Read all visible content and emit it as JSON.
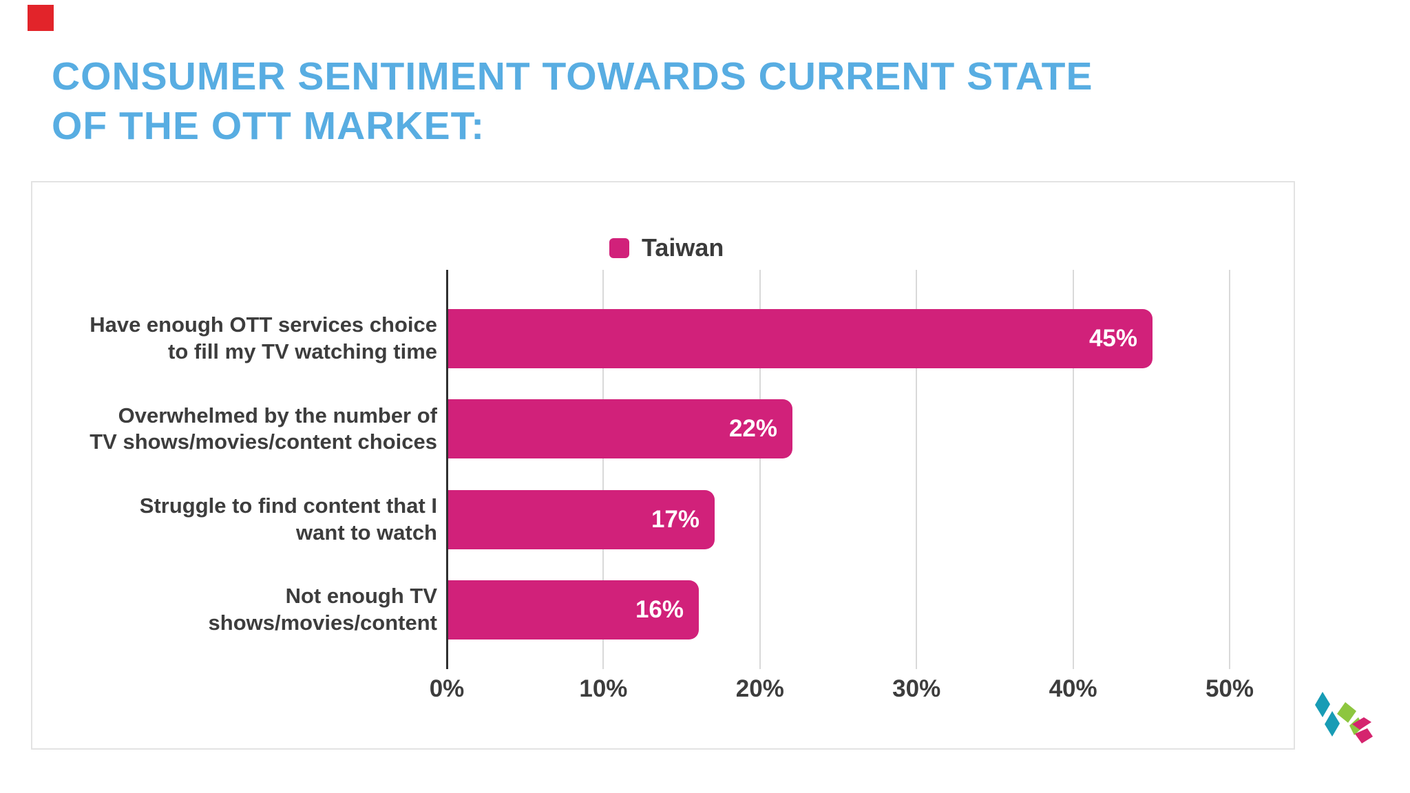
{
  "page": {
    "title": "CONSUMER SENTIMENT TOWARDS CURRENT STATE\nOF THE OTT MARKET:",
    "title_color": "#58ade2",
    "corner_square_color": "#e2242a",
    "card_border_color": "#e3e3e3"
  },
  "legend": {
    "label": "Taiwan",
    "swatch_color": "#d1217a",
    "position": "top-center"
  },
  "chart_data": {
    "type": "bar",
    "orientation": "horizontal",
    "title": "",
    "series_name": "Taiwan",
    "categories": [
      "Have enough OTT services choice\nto fill my TV watching time",
      "Overwhelmed by the number of\nTV shows/movies/content choices",
      "Struggle to find content that I\nwant to watch",
      "Not enough TV\nshows/movies/content"
    ],
    "values": [
      45,
      22,
      17,
      16
    ],
    "value_labels": [
      "45%",
      "22%",
      "17%",
      "16%"
    ],
    "x_ticks": [
      "0%",
      "10%",
      "20%",
      "30%",
      "40%",
      "50%"
    ],
    "x_tick_values": [
      0,
      10,
      20,
      30,
      40,
      50
    ],
    "xlim": [
      0,
      50
    ],
    "grid": true,
    "bar_color": "#d1217a",
    "value_label_color": "#ffffff",
    "category_label_color": "#3d3d3d",
    "axis_line_color": "#2f2f2f",
    "gridline_color": "#d9d9d9"
  },
  "logo": {
    "teal": "#189cb5",
    "green": "#8dc63f",
    "pink": "#d5246e"
  }
}
